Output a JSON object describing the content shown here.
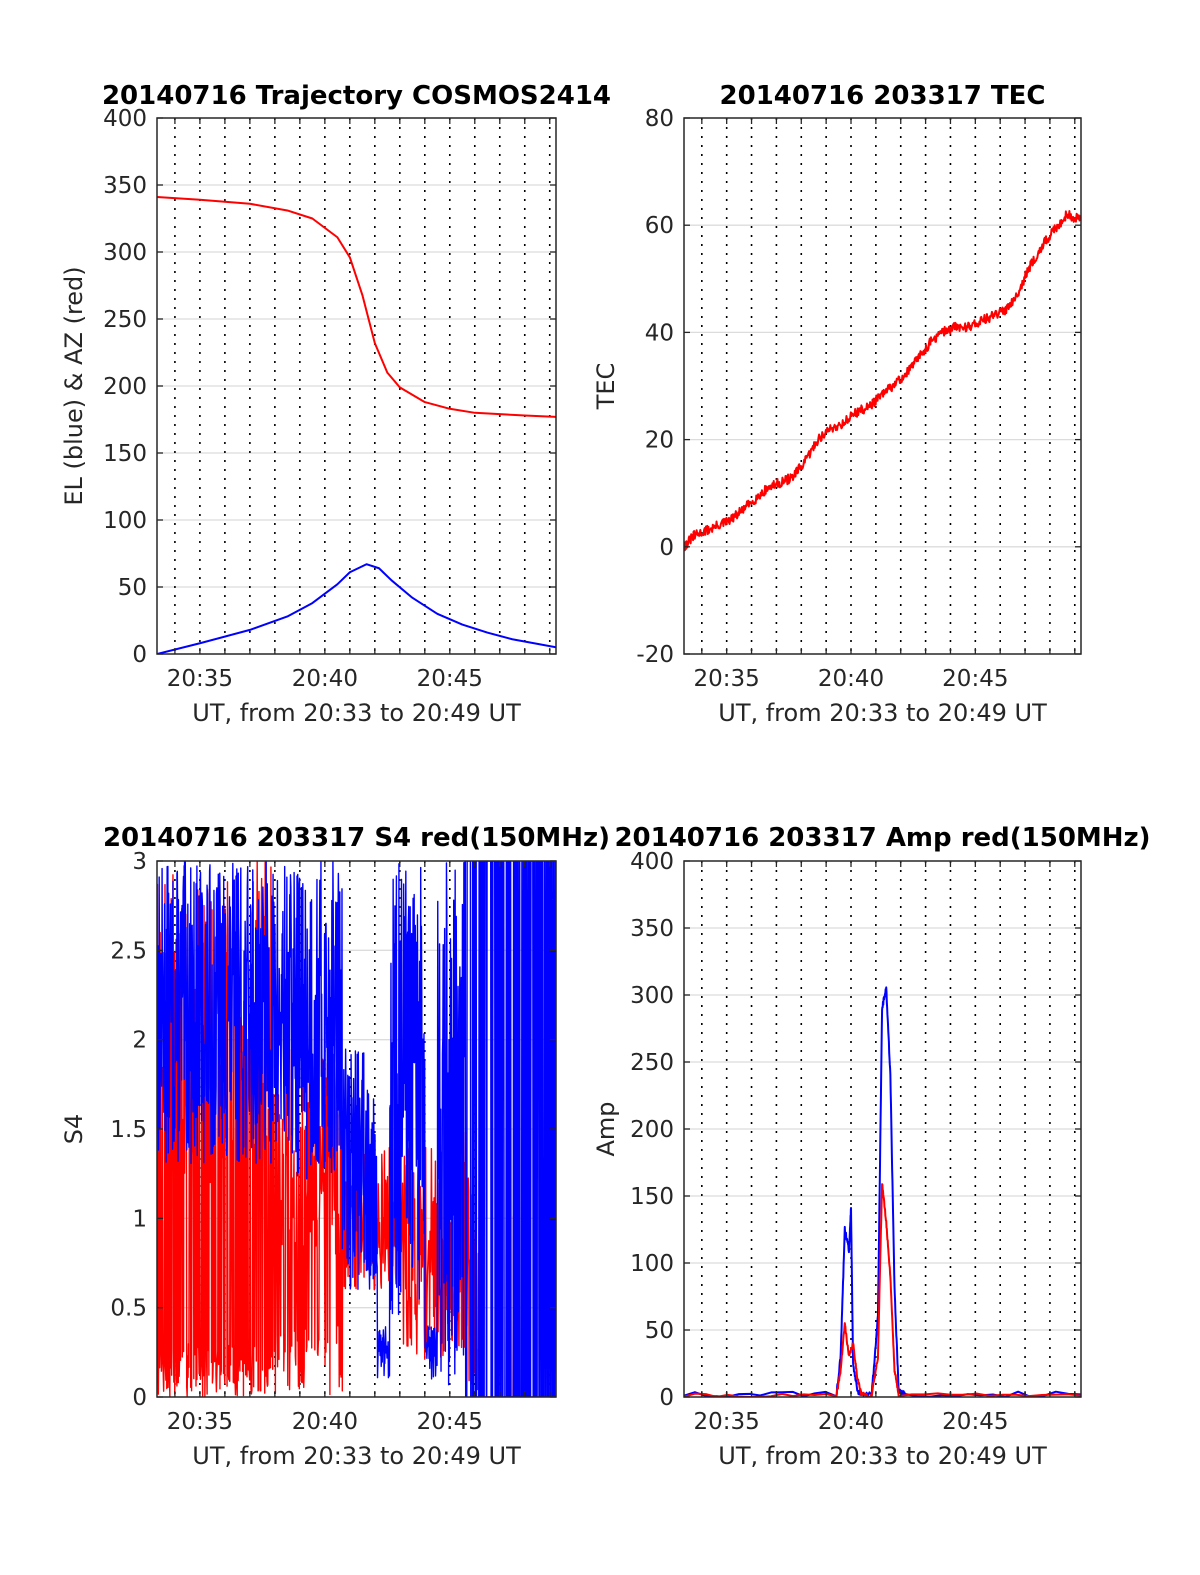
{
  "colors": {
    "az": "#ff0000",
    "el": "#0000ff",
    "red": "#ff0000",
    "blue": "#0000ff",
    "grid": "#dcdcdc",
    "axis": "#262626"
  },
  "chart_data": [
    {
      "id": "trajectory",
      "type": "line",
      "title": "20140716 Trajectory COSMOS2414",
      "xlabel": "UT, from 20:33 to 20:49 UT",
      "ylabel": "EL (blue) & AZ (red)",
      "xlim": [
        "20:33:17",
        "20:49:15"
      ],
      "ylim": [
        0,
        400
      ],
      "yticks": [
        "0",
        "50",
        "100",
        "150",
        "200",
        "250",
        "300",
        "350",
        "400"
      ],
      "xticks": [
        "20:35",
        "20:40",
        "20:45"
      ],
      "grid": true,
      "series": [
        {
          "color": "red",
          "x": [
            "20:33:17",
            "20:35:00",
            "20:37:00",
            "20:38:30",
            "20:39:30",
            "20:40:30",
            "20:41:00",
            "20:41:30",
            "20:42:00",
            "20:42:30",
            "20:43:00",
            "20:44:00",
            "20:45:00",
            "20:46:00",
            "20:47:00",
            "20:48:00",
            "20:49:15"
          ],
          "values": [
            341,
            339,
            336,
            331,
            325,
            311,
            296,
            268,
            232,
            210,
            199,
            188,
            183,
            180,
            179,
            178,
            177
          ]
        },
        {
          "color": "blue",
          "x": [
            "20:33:17",
            "20:35:00",
            "20:37:00",
            "20:38:30",
            "20:39:30",
            "20:40:30",
            "20:41:00",
            "20:41:40",
            "20:42:10",
            "20:42:40",
            "20:43:30",
            "20:44:30",
            "20:45:30",
            "20:46:30",
            "20:47:30",
            "20:49:15"
          ],
          "values": [
            0,
            8,
            18,
            28,
            38,
            52,
            61,
            67,
            64,
            55,
            42,
            30,
            22,
            16,
            11,
            5
          ]
        }
      ]
    },
    {
      "id": "tec",
      "type": "line",
      "title": "20140716 203317 TEC",
      "xlabel": "UT, from 20:33 to 20:49 UT",
      "ylabel": "TEC",
      "xlim": [
        "20:33:17",
        "20:49:15"
      ],
      "ylim": [
        -20,
        80
      ],
      "yticks": [
        "-20",
        "0",
        "20",
        "40",
        "60",
        "80"
      ],
      "xticks": [
        "20:35",
        "20:40",
        "20:45"
      ],
      "grid": true,
      "series": [
        {
          "color": "red",
          "x": [
            "20:33:17",
            "20:33:40",
            "20:34:10",
            "20:34:40",
            "20:35:10",
            "20:35:40",
            "20:36:10",
            "20:36:40",
            "20:37:10",
            "20:37:40",
            "20:38:10",
            "20:38:40",
            "20:39:10",
            "20:39:40",
            "20:40:10",
            "20:40:40",
            "20:41:10",
            "20:41:40",
            "20:42:10",
            "20:42:40",
            "20:43:10",
            "20:43:40",
            "20:44:10",
            "20:44:40",
            "20:45:10",
            "20:45:40",
            "20:46:10",
            "20:46:40",
            "20:47:10",
            "20:47:40",
            "20:48:10",
            "20:48:40",
            "20:49:15"
          ],
          "values": [
            0,
            2,
            3,
            4,
            5,
            7,
            9,
            11,
            12,
            13,
            16,
            20,
            22,
            23,
            25,
            26,
            28,
            30,
            32,
            35,
            38,
            40,
            41,
            41,
            42,
            43,
            44,
            47,
            52,
            56,
            59,
            62,
            61
          ]
        }
      ]
    },
    {
      "id": "s4",
      "type": "line",
      "title": "20140716 203317 S4 red(150MHz)",
      "xlabel": "UT, from 20:33 to 20:49 UT",
      "ylabel": "S4",
      "xlim": [
        "20:33:17",
        "20:49:15"
      ],
      "ylim": [
        0,
        3
      ],
      "yticks": [
        "0",
        "0.5",
        "1",
        "1.5",
        "2",
        "2.5",
        "3"
      ],
      "xticks": [
        "20:35",
        "20:40",
        "20:45"
      ],
      "grid": true,
      "series": [
        {
          "color": "red",
          "x": [],
          "values": []
        },
        {
          "color": "blue",
          "x": [],
          "values": []
        }
      ]
    },
    {
      "id": "amp",
      "type": "line",
      "title": "20140716 203317 Amp red(150MHz)",
      "xlabel": "UT, from 20:33 to 20:49 UT",
      "ylabel": "Amp",
      "xlim": [
        "20:33:17",
        "20:49:15"
      ],
      "ylim": [
        0,
        400
      ],
      "yticks": [
        "0",
        "50",
        "100",
        "150",
        "200",
        "250",
        "300",
        "350",
        "400"
      ],
      "xticks": [
        "20:35",
        "20:40",
        "20:45"
      ],
      "grid": true,
      "series": [
        {
          "color": "blue",
          "x": [
            "20:33:17",
            "20:39:25",
            "20:39:35",
            "20:39:45",
            "20:39:55",
            "20:40:00",
            "20:40:05",
            "20:40:15",
            "20:40:25",
            "20:40:50",
            "20:41:05",
            "20:41:15",
            "20:41:25",
            "20:41:35",
            "20:41:45",
            "20:41:55",
            "20:42:10",
            "20:49:15"
          ],
          "values": [
            2,
            2,
            30,
            125,
            110,
            140,
            25,
            5,
            2,
            2,
            60,
            290,
            305,
            240,
            80,
            5,
            2,
            2
          ]
        },
        {
          "color": "red",
          "x": [
            "20:33:17",
            "20:39:25",
            "20:39:35",
            "20:39:45",
            "20:39:55",
            "20:40:05",
            "20:40:15",
            "20:40:25",
            "20:40:50",
            "20:41:05",
            "20:41:15",
            "20:41:25",
            "20:41:35",
            "20:41:45",
            "20:41:55",
            "20:49:15"
          ],
          "values": [
            1,
            1,
            20,
            55,
            30,
            40,
            15,
            2,
            1,
            30,
            160,
            130,
            90,
            20,
            2,
            1
          ]
        }
      ]
    }
  ]
}
